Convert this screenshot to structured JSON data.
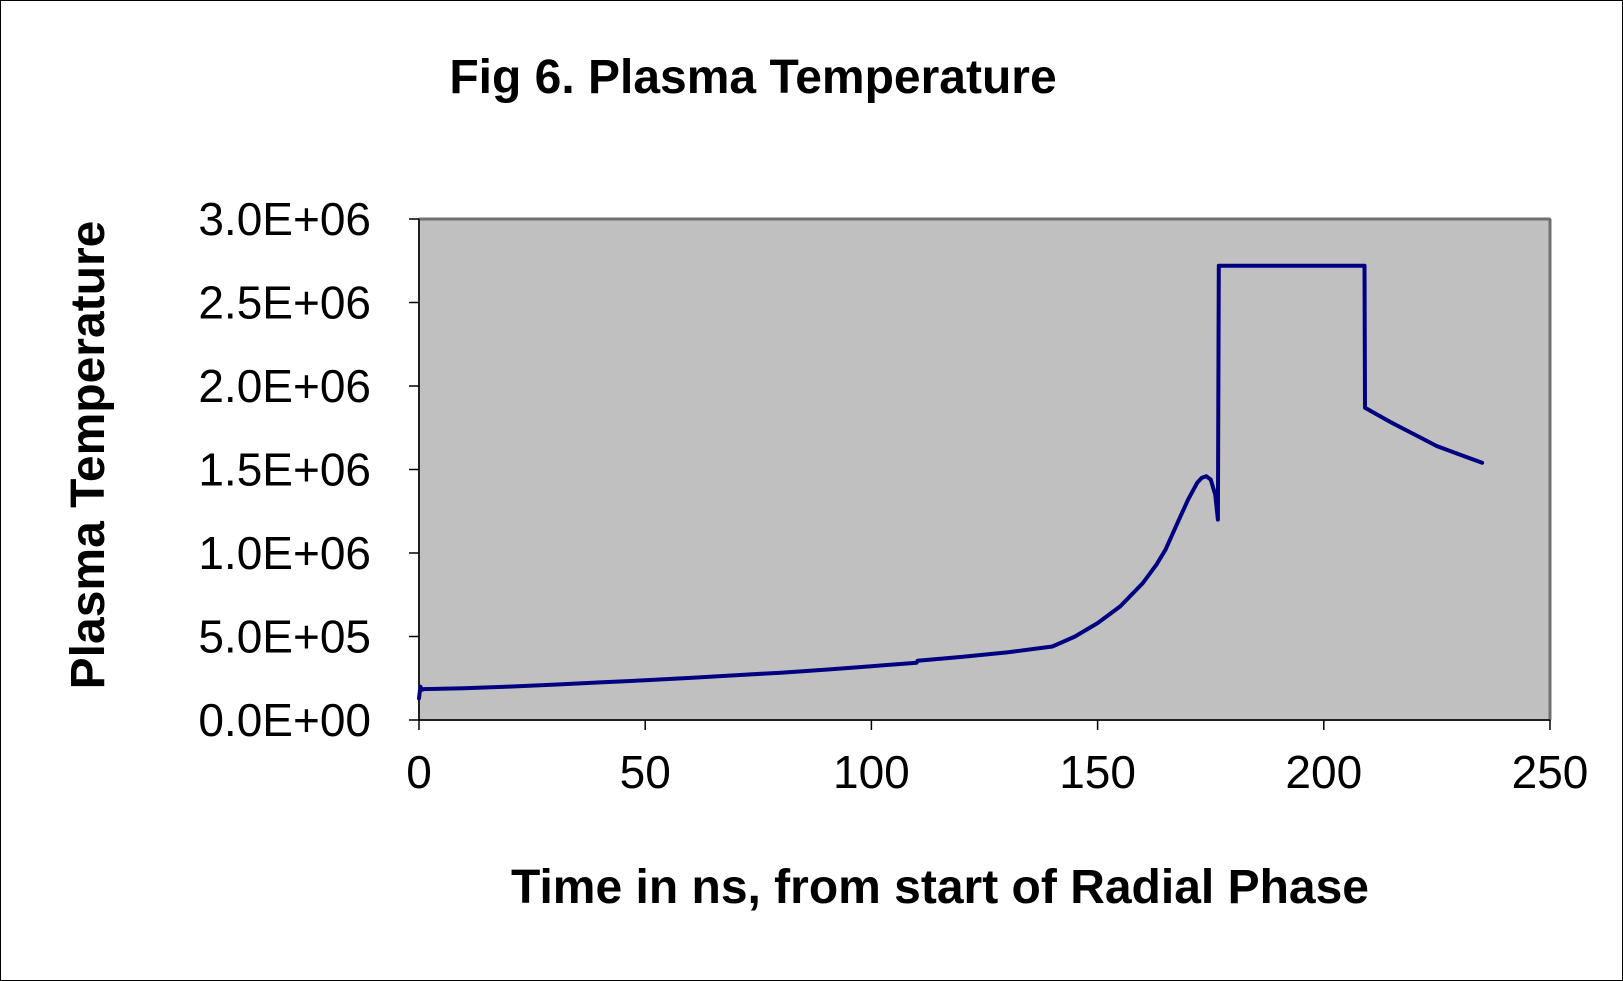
{
  "chart_data": {
    "type": "line",
    "title": "Fig 6. Plasma Temperature",
    "xlabel": "Time in ns, from start of Radial Phase",
    "ylabel": "Plasma Temperature",
    "xlim": [
      0,
      250
    ],
    "ylim": [
      0,
      3000000
    ],
    "x_ticks": [
      0,
      50,
      100,
      150,
      200,
      250
    ],
    "x_tick_labels": [
      "0",
      "50",
      "100",
      "150",
      "200",
      "250"
    ],
    "y_ticks": [
      0,
      500000,
      1000000,
      1500000,
      2000000,
      2500000,
      3000000
    ],
    "y_tick_labels": [
      "0.0E+00",
      "5.0E+05",
      "1.0E+06",
      "1.5E+06",
      "2.0E+06",
      "2.5E+06",
      "3.0E+06"
    ],
    "grid": false,
    "legend": "none",
    "plot_background": "#c0c0c0",
    "line_color": "#000080",
    "series": [
      {
        "x": [
          0,
          0.3,
          0.6,
          1,
          10,
          20,
          30,
          40,
          50,
          60,
          70,
          80,
          90,
          100,
          110,
          110.2,
          120,
          130,
          140,
          145,
          150,
          155,
          160,
          163,
          165,
          168,
          170,
          172,
          173,
          174,
          175,
          176,
          176.6,
          176.8,
          177,
          180,
          190,
          200,
          208,
          209,
          209.1,
          215,
          220,
          225,
          230,
          235
        ],
        "y": [
          130000,
          200000,
          180000,
          185000,
          190000,
          200000,
          212000,
          225000,
          238000,
          252000,
          268000,
          283000,
          302000,
          322000,
          343000,
          355000,
          378000,
          405000,
          440000,
          500000,
          580000,
          680000,
          820000,
          930000,
          1020000,
          1200000,
          1320000,
          1420000,
          1450000,
          1460000,
          1440000,
          1350000,
          1200000,
          2720000,
          2720000,
          2720000,
          2720000,
          2720000,
          2720000,
          2720000,
          1870000,
          1780000,
          1710000,
          1640000,
          1590000,
          1540000
        ]
      }
    ]
  }
}
